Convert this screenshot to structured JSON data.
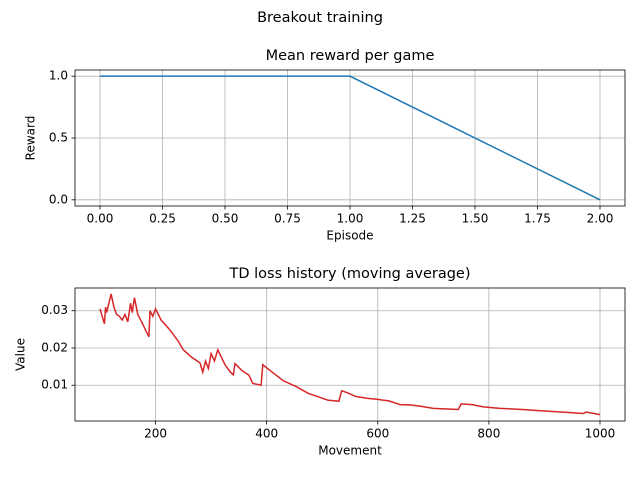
{
  "title": "Breakout training",
  "chart_data": [
    {
      "type": "line",
      "title": "Mean reward per game",
      "x_label": "Episode",
      "y_label": "Reward",
      "x": [
        0,
        1,
        2
      ],
      "series": [
        {
          "color": "#1f77b4",
          "values": [
            1,
            1,
            0
          ]
        }
      ],
      "xlim": [
        -0.1,
        2.1
      ],
      "xticks": [
        {
          "value": 0,
          "label": "0.00"
        },
        {
          "value": 0.25,
          "label": "0.25"
        },
        {
          "value": 0.5,
          "label": "0.50"
        },
        {
          "value": 0.75,
          "label": "0.75"
        },
        {
          "value": 1,
          "label": "1.00"
        },
        {
          "value": 1.25,
          "label": "1.25"
        },
        {
          "value": 1.5,
          "label": "1.50"
        },
        {
          "value": 1.75,
          "label": "1.75"
        },
        {
          "value": 2,
          "label": "2.00"
        }
      ],
      "ylim": [
        -0.05,
        1.05
      ],
      "yticks": [
        {
          "value": 0,
          "label": "0.0"
        },
        0.5,
        {
          "value": 1,
          "label": "1.0"
        }
      ],
      "grid": true
    },
    {
      "type": "line",
      "title": "TD loss history (moving average)",
      "x_label": "Movement",
      "y_label": "Value",
      "x": [
        100,
        105,
        108,
        110,
        112,
        116,
        120,
        125,
        130,
        135,
        140,
        145,
        150,
        155,
        158,
        162,
        168,
        175,
        183,
        188,
        190,
        195,
        200,
        210,
        225,
        240,
        250,
        265,
        280,
        285,
        290,
        295,
        300,
        306,
        312,
        325,
        335,
        340,
        343,
        355,
        368,
        375,
        390,
        393,
        410,
        430,
        455,
        475,
        495,
        510,
        530,
        535,
        545,
        560,
        580,
        600,
        620,
        640,
        660,
        680,
        700,
        730,
        745,
        750,
        770,
        790,
        820,
        860,
        900,
        940,
        970,
        975,
        1000
      ],
      "series": [
        {
          "color": "#d62728",
          "values": [
            0.0305,
            0.028,
            0.0265,
            0.031,
            0.0295,
            0.032,
            0.0345,
            0.031,
            0.029,
            0.0285,
            0.0275,
            0.029,
            0.027,
            0.032,
            0.0295,
            0.0335,
            0.029,
            0.027,
            0.0245,
            0.023,
            0.03,
            0.0285,
            0.0305,
            0.0275,
            0.025,
            0.022,
            0.0195,
            0.0175,
            0.016,
            0.0135,
            0.0165,
            0.0145,
            0.0185,
            0.0165,
            0.0195,
            0.0155,
            0.0135,
            0.0128,
            0.0158,
            0.014,
            0.0127,
            0.0105,
            0.01,
            0.0155,
            0.0135,
            0.0112,
            0.0095,
            0.0078,
            0.0068,
            0.006,
            0.0057,
            0.0085,
            0.008,
            0.007,
            0.0065,
            0.0062,
            0.0058,
            0.0048,
            0.0047,
            0.0043,
            0.0038,
            0.0036,
            0.0035,
            0.005,
            0.0048,
            0.0042,
            0.0038,
            0.0035,
            0.0031,
            0.0027,
            0.0024,
            0.0028,
            0.0021
          ]
        }
      ],
      "xlim": [
        55,
        1045
      ],
      "xticks": [
        200,
        400,
        600,
        800,
        1000
      ],
      "ylim": [
        0.0004,
        0.0361
      ],
      "yticks": [
        0.01,
        0.02,
        0.03
      ],
      "grid": true
    }
  ]
}
